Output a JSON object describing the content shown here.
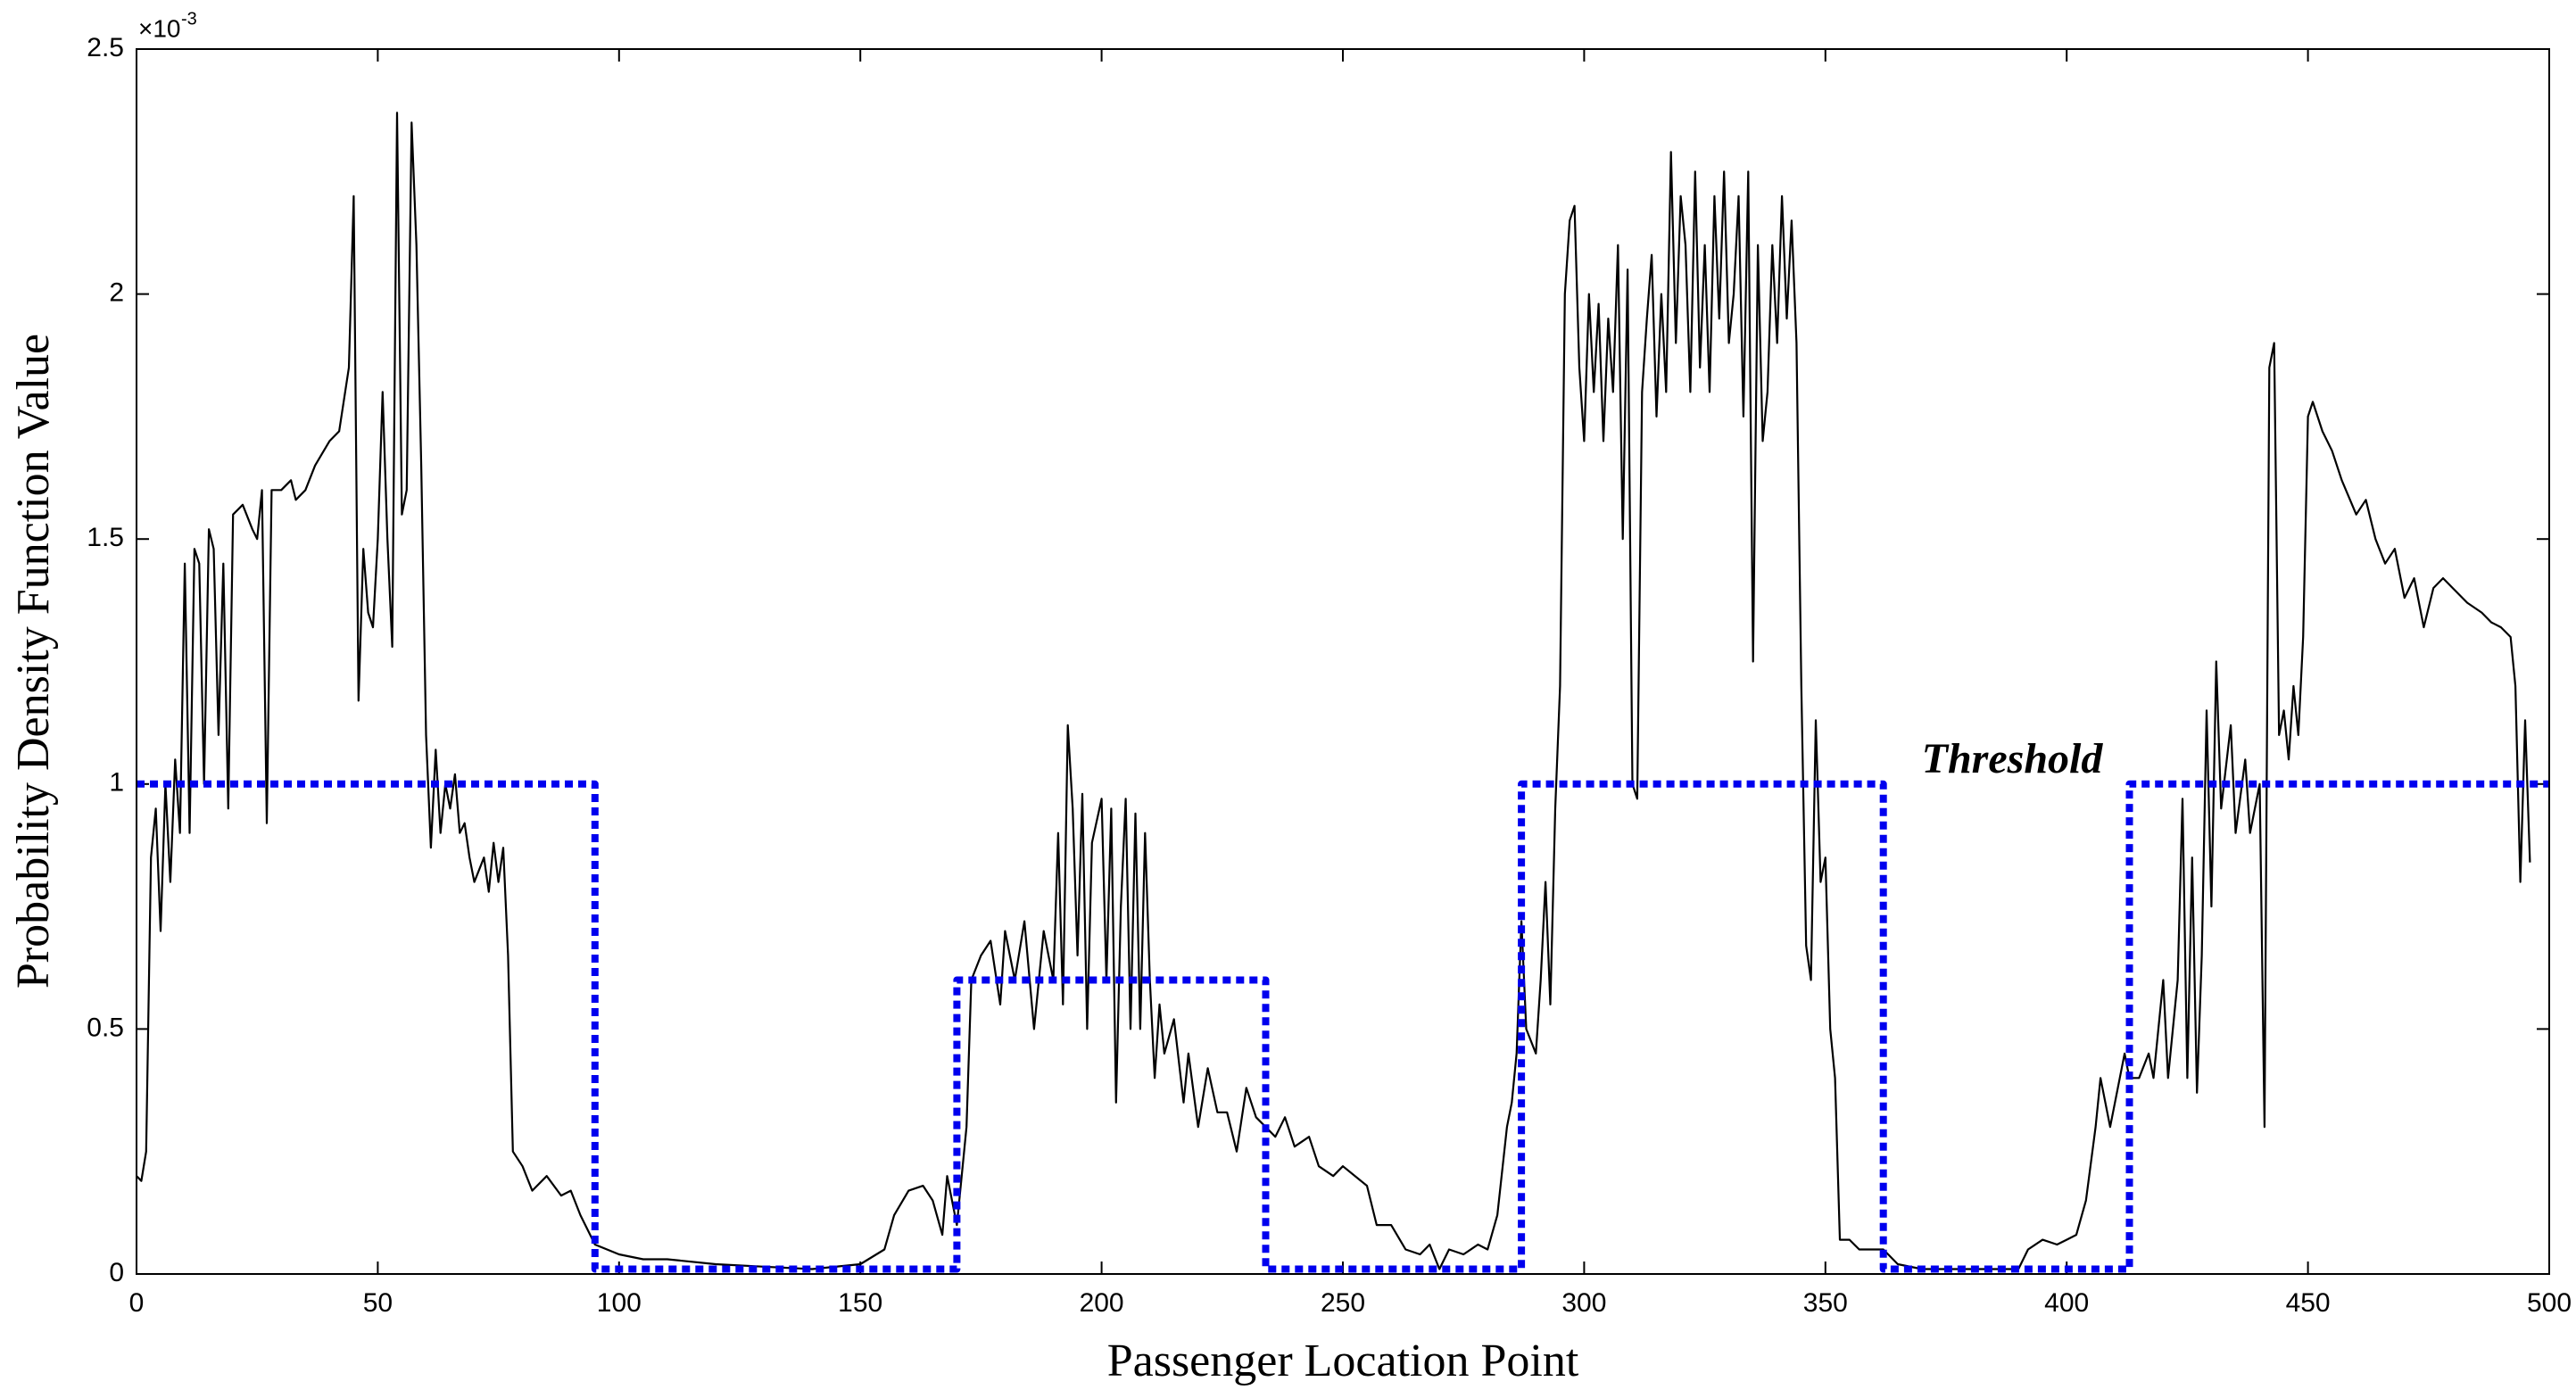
{
  "chart_data": {
    "type": "line",
    "x_label": "Passenger Location Point",
    "y_label": "Probability Density Function Value",
    "y_multiplier": {
      "base": "×10",
      "exponent": "-3"
    },
    "annotation": "Threshold",
    "xlim": [
      0,
      500
    ],
    "xticks": [
      0,
      50,
      100,
      150,
      200,
      250,
      300,
      350,
      400,
      450,
      500
    ],
    "ylim": [
      0,
      2.5
    ],
    "yticks": [
      0,
      0.5,
      1,
      1.5,
      2,
      2.5
    ],
    "series": [
      {
        "color": "#000000",
        "style": "solid",
        "x": [
          0,
          1,
          2,
          3,
          4,
          5,
          6,
          7,
          8,
          9,
          10,
          11,
          12,
          13,
          14,
          15,
          16,
          17,
          18,
          19,
          20,
          22,
          24,
          25,
          26,
          27,
          28,
          30,
          32,
          33,
          35,
          37,
          40,
          42,
          44,
          45,
          46,
          47,
          48,
          49,
          50,
          51,
          52,
          53,
          54,
          55,
          56,
          57,
          58,
          59,
          60,
          61,
          62,
          63,
          64,
          65,
          66,
          67,
          68,
          69,
          70,
          72,
          73,
          74,
          75,
          76,
          77,
          78,
          80,
          82,
          85,
          88,
          90,
          92,
          95,
          100,
          105,
          110,
          120,
          130,
          140,
          150,
          155,
          157,
          160,
          163,
          165,
          167,
          168,
          170,
          172,
          173,
          175,
          177,
          179,
          180,
          182,
          184,
          186,
          188,
          190,
          191,
          192,
          193,
          194,
          195,
          196,
          197,
          198,
          200,
          201,
          202,
          203,
          204,
          205,
          206,
          207,
          208,
          209,
          210,
          211,
          212,
          213,
          215,
          217,
          218,
          220,
          222,
          224,
          226,
          228,
          230,
          232,
          234,
          236,
          238,
          240,
          243,
          245,
          248,
          250,
          255,
          257,
          260,
          263,
          266,
          268,
          270,
          272,
          275,
          278,
          280,
          282,
          284,
          285,
          286,
          287,
          288,
          290,
          291,
          292,
          293,
          294,
          295,
          296,
          297,
          298,
          299,
          300,
          301,
          302,
          303,
          304,
          305,
          306,
          307,
          308,
          309,
          310,
          311,
          312,
          313,
          314,
          315,
          316,
          317,
          318,
          319,
          320,
          321,
          322,
          323,
          324,
          325,
          326,
          327,
          328,
          329,
          330,
          331,
          332,
          333,
          334,
          335,
          336,
          337,
          338,
          339,
          340,
          341,
          342,
          343,
          344,
          345,
          346,
          347,
          348,
          349,
          350,
          351,
          352,
          353,
          355,
          357,
          360,
          362,
          365,
          370,
          380,
          390,
          392,
          395,
          398,
          400,
          402,
          404,
          406,
          407,
          409,
          410,
          412,
          413,
          415,
          417,
          418,
          420,
          421,
          423,
          424,
          425,
          426,
          427,
          428,
          429,
          430,
          431,
          432,
          434,
          435,
          437,
          438,
          440,
          441,
          442,
          443,
          444,
          445,
          446,
          447,
          448,
          449,
          450,
          451,
          453,
          455,
          457,
          460,
          462,
          464,
          466,
          468,
          470,
          472,
          474,
          476,
          478,
          480,
          483,
          486,
          488,
          490,
          492,
          493,
          494,
          495,
          496
        ],
        "values": [
          0.2,
          0.19,
          0.25,
          0.85,
          0.95,
          0.7,
          1.0,
          0.8,
          1.05,
          0.9,
          1.45,
          0.9,
          1.48,
          1.45,
          1.0,
          1.52,
          1.48,
          1.1,
          1.45,
          0.95,
          1.55,
          1.57,
          1.52,
          1.5,
          1.6,
          0.92,
          1.6,
          1.6,
          1.62,
          1.58,
          1.6,
          1.65,
          1.7,
          1.72,
          1.85,
          2.2,
          1.17,
          1.48,
          1.35,
          1.32,
          1.5,
          1.8,
          1.5,
          1.28,
          2.37,
          1.55,
          1.6,
          2.35,
          2.1,
          1.65,
          1.1,
          0.87,
          1.07,
          0.9,
          1.0,
          0.95,
          1.02,
          0.9,
          0.92,
          0.85,
          0.8,
          0.85,
          0.78,
          0.88,
          0.8,
          0.87,
          0.65,
          0.25,
          0.22,
          0.17,
          0.2,
          0.16,
          0.17,
          0.12,
          0.06,
          0.04,
          0.03,
          0.03,
          0.02,
          0.015,
          0.01,
          0.02,
          0.05,
          0.12,
          0.17,
          0.18,
          0.15,
          0.08,
          0.2,
          0.1,
          0.3,
          0.6,
          0.65,
          0.68,
          0.55,
          0.7,
          0.6,
          0.72,
          0.5,
          0.7,
          0.6,
          0.9,
          0.55,
          1.12,
          0.95,
          0.65,
          0.98,
          0.5,
          0.88,
          0.97,
          0.6,
          0.95,
          0.35,
          0.75,
          0.97,
          0.5,
          0.94,
          0.5,
          0.9,
          0.6,
          0.4,
          0.55,
          0.45,
          0.52,
          0.35,
          0.45,
          0.3,
          0.42,
          0.33,
          0.33,
          0.25,
          0.38,
          0.32,
          0.3,
          0.28,
          0.32,
          0.26,
          0.28,
          0.22,
          0.2,
          0.22,
          0.18,
          0.1,
          0.1,
          0.05,
          0.04,
          0.06,
          0.01,
          0.05,
          0.04,
          0.06,
          0.05,
          0.12,
          0.3,
          0.35,
          0.45,
          0.72,
          0.5,
          0.45,
          0.6,
          0.8,
          0.55,
          0.95,
          1.2,
          2.0,
          2.15,
          2.18,
          1.85,
          1.7,
          2.0,
          1.8,
          1.98,
          1.7,
          1.95,
          1.8,
          2.1,
          1.5,
          2.05,
          1.0,
          0.97,
          1.8,
          1.95,
          2.08,
          1.75,
          2.0,
          1.8,
          2.29,
          1.9,
          2.2,
          2.1,
          1.8,
          2.25,
          1.85,
          2.1,
          1.8,
          2.2,
          1.95,
          2.25,
          1.9,
          2.0,
          2.2,
          1.75,
          2.25,
          1.25,
          2.1,
          1.7,
          1.8,
          2.1,
          1.9,
          2.2,
          1.95,
          2.15,
          1.9,
          1.2,
          0.67,
          0.6,
          1.13,
          0.8,
          0.85,
          0.5,
          0.4,
          0.07,
          0.07,
          0.05,
          0.05,
          0.05,
          0.02,
          0.01,
          0.01,
          0.01,
          0.05,
          0.07,
          0.06,
          0.07,
          0.08,
          0.15,
          0.3,
          0.4,
          0.3,
          0.35,
          0.45,
          0.4,
          0.4,
          0.45,
          0.4,
          0.6,
          0.4,
          0.6,
          0.97,
          0.4,
          0.85,
          0.37,
          0.65,
          1.15,
          0.75,
          1.25,
          0.95,
          1.12,
          0.9,
          1.05,
          0.9,
          1.0,
          0.3,
          1.85,
          1.9,
          1.1,
          1.15,
          1.05,
          1.2,
          1.1,
          1.3,
          1.75,
          1.78,
          1.72,
          1.68,
          1.62,
          1.55,
          1.58,
          1.5,
          1.45,
          1.48,
          1.38,
          1.42,
          1.32,
          1.4,
          1.42,
          1.4,
          1.37,
          1.35,
          1.33,
          1.32,
          1.3,
          1.2,
          0.8,
          1.13,
          0.84
        ]
      },
      {
        "name": "Threshold",
        "color": "#0000ee",
        "style": "dotted",
        "x": [
          0,
          95,
          95,
          170,
          170,
          234,
          234,
          287,
          287,
          362,
          362,
          413,
          413,
          500
        ],
        "values": [
          1,
          1,
          0.01,
          0.01,
          0.6,
          0.6,
          0.01,
          0.01,
          1,
          1,
          0.01,
          0.01,
          1,
          1
        ]
      }
    ]
  }
}
